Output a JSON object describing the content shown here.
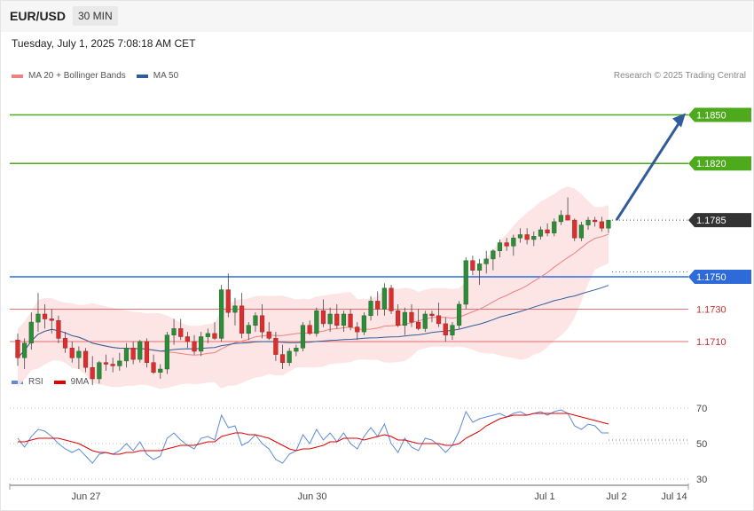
{
  "header": {
    "symbol": "EUR/USD",
    "timeframe": "30 MIN"
  },
  "timestamp": "Tuesday, July 1, 2025 7:08:18 AM CET",
  "credit": "Research © 2025 Trading Central",
  "legend_main": [
    {
      "label": "MA 20 + Bollinger Bands",
      "color": "#f08080"
    },
    {
      "label": "MA 50",
      "color": "#2f5c9a"
    }
  ],
  "legend_rsi": [
    {
      "label": "RSI",
      "color": "#5b8bd9"
    },
    {
      "label": "9MA",
      "color": "#e00000"
    }
  ],
  "chart_data": [
    {
      "type": "candlestick",
      "ylim": [
        1.167,
        1.1872
      ],
      "x_ticks": [
        "Jun 27",
        "Jun 30",
        "Jul 1",
        "Jul 2",
        "Jul 14"
      ],
      "levels": [
        {
          "value": 1.185,
          "label": "1.1850",
          "kind": "target",
          "color": "#4caa1c"
        },
        {
          "value": 1.182,
          "label": "1.1820",
          "kind": "resistance",
          "color": "#4caa1c"
        },
        {
          "value": 1.1785,
          "label": "1.1785",
          "kind": "last",
          "color": "#333333"
        },
        {
          "value": 1.175,
          "label": "1.1750",
          "kind": "pivot",
          "color": "#2f6bd8"
        },
        {
          "value": 1.173,
          "label": "1.1730",
          "kind": "support",
          "color": "#e05050"
        },
        {
          "value": 1.171,
          "label": "1.1710",
          "kind": "support",
          "color": "#e05050"
        }
      ],
      "projection": {
        "from": 1.1785,
        "to": 1.185
      },
      "ohlc": [
        [
          1.1711,
          1.1715,
          1.1695,
          1.17
        ],
        [
          1.17,
          1.1712,
          1.1693,
          1.1709
        ],
        [
          1.1709,
          1.1728,
          1.1705,
          1.1722
        ],
        [
          1.1722,
          1.174,
          1.1716,
          1.1727
        ],
        [
          1.1727,
          1.1733,
          1.1718,
          1.1724
        ],
        [
          1.1724,
          1.173,
          1.1715,
          1.1723
        ],
        [
          1.1723,
          1.1726,
          1.1709,
          1.1712
        ],
        [
          1.1712,
          1.1716,
          1.1703,
          1.1706
        ],
        [
          1.1706,
          1.171,
          1.1697,
          1.17
        ],
        [
          1.17,
          1.1707,
          1.1693,
          1.1704
        ],
        [
          1.1704,
          1.1706,
          1.1691,
          1.1694
        ],
        [
          1.1694,
          1.1701,
          1.1683,
          1.1687
        ],
        [
          1.1687,
          1.1698,
          1.1684,
          1.1697
        ],
        [
          1.1697,
          1.1702,
          1.1692,
          1.1696
        ],
        [
          1.1696,
          1.17,
          1.1691,
          1.1695
        ],
        [
          1.1695,
          1.1703,
          1.1692,
          1.1698
        ],
        [
          1.1698,
          1.1709,
          1.1694,
          1.1706
        ],
        [
          1.1706,
          1.171,
          1.1696,
          1.1699
        ],
        [
          1.1699,
          1.1711,
          1.1697,
          1.171
        ],
        [
          1.171,
          1.1712,
          1.1694,
          1.1697
        ],
        [
          1.1697,
          1.1702,
          1.169,
          1.1691
        ],
        [
          1.1691,
          1.1696,
          1.1687,
          1.1693
        ],
        [
          1.1693,
          1.1716,
          1.169,
          1.1714
        ],
        [
          1.1714,
          1.1724,
          1.1708,
          1.1718
        ],
        [
          1.1718,
          1.1724,
          1.1711,
          1.1713
        ],
        [
          1.1713,
          1.1716,
          1.1706,
          1.171
        ],
        [
          1.171,
          1.1714,
          1.1702,
          1.1704
        ],
        [
          1.1704,
          1.1716,
          1.1701,
          1.1713
        ],
        [
          1.1713,
          1.1718,
          1.1709,
          1.1715
        ],
        [
          1.1715,
          1.1722,
          1.1711,
          1.1712
        ],
        [
          1.1712,
          1.1745,
          1.171,
          1.1742
        ],
        [
          1.1742,
          1.1752,
          1.1725,
          1.1728
        ],
        [
          1.1728,
          1.1737,
          1.172,
          1.1732
        ],
        [
          1.1732,
          1.174,
          1.1712,
          1.1715
        ],
        [
          1.1715,
          1.1722,
          1.1711,
          1.172
        ],
        [
          1.172,
          1.1728,
          1.1716,
          1.1726
        ],
        [
          1.1726,
          1.1733,
          1.1712,
          1.1716
        ],
        [
          1.1716,
          1.1722,
          1.1711,
          1.1712
        ],
        [
          1.1712,
          1.1716,
          1.1698,
          1.1702
        ],
        [
          1.1702,
          1.1708,
          1.1693,
          1.1697
        ],
        [
          1.1697,
          1.1706,
          1.1695,
          1.1704
        ],
        [
          1.1704,
          1.1708,
          1.1701,
          1.1706
        ],
        [
          1.1706,
          1.1722,
          1.1704,
          1.172
        ],
        [
          1.172,
          1.1723,
          1.1714,
          1.1715
        ],
        [
          1.1715,
          1.1731,
          1.1713,
          1.1729
        ],
        [
          1.1729,
          1.1736,
          1.1719,
          1.1721
        ],
        [
          1.1721,
          1.1731,
          1.1716,
          1.1727
        ],
        [
          1.1727,
          1.1733,
          1.1718,
          1.172
        ],
        [
          1.172,
          1.1729,
          1.1716,
          1.1727
        ],
        [
          1.1727,
          1.173,
          1.1717,
          1.1719
        ],
        [
          1.1719,
          1.1722,
          1.1711,
          1.1716
        ],
        [
          1.1716,
          1.1728,
          1.1714,
          1.1726
        ],
        [
          1.1726,
          1.1738,
          1.1723,
          1.1735
        ],
        [
          1.1735,
          1.1741,
          1.1726,
          1.173
        ],
        [
          1.173,
          1.1746,
          1.1726,
          1.1743
        ],
        [
          1.1743,
          1.1745,
          1.1727,
          1.1729
        ],
        [
          1.1729,
          1.1733,
          1.1719,
          1.172
        ],
        [
          1.172,
          1.1731,
          1.1714,
          1.1728
        ],
        [
          1.1728,
          1.1733,
          1.1719,
          1.1722
        ],
        [
          1.1722,
          1.173,
          1.1717,
          1.1718
        ],
        [
          1.1718,
          1.1729,
          1.1716,
          1.1727
        ],
        [
          1.1727,
          1.1729,
          1.1722,
          1.1726
        ],
        [
          1.1726,
          1.1734,
          1.1719,
          1.1721
        ],
        [
          1.1721,
          1.1725,
          1.171,
          1.1714
        ],
        [
          1.1714,
          1.1722,
          1.1711,
          1.172
        ],
        [
          1.172,
          1.1735,
          1.1718,
          1.1733
        ],
        [
          1.1733,
          1.1762,
          1.173,
          1.176
        ],
        [
          1.176,
          1.1763,
          1.1751,
          1.1754
        ],
        [
          1.1754,
          1.1761,
          1.1745,
          1.1758
        ],
        [
          1.1758,
          1.1766,
          1.1752,
          1.1761
        ],
        [
          1.1761,
          1.1767,
          1.1754,
          1.1766
        ],
        [
          1.1766,
          1.1773,
          1.1762,
          1.1771
        ],
        [
          1.1771,
          1.1774,
          1.1766,
          1.1769
        ],
        [
          1.1769,
          1.1776,
          1.1763,
          1.1774
        ],
        [
          1.1774,
          1.178,
          1.1771,
          1.1776
        ],
        [
          1.1776,
          1.178,
          1.177,
          1.1773
        ],
        [
          1.1773,
          1.1778,
          1.1769,
          1.1775
        ],
        [
          1.1775,
          1.1781,
          1.1773,
          1.1779
        ],
        [
          1.1779,
          1.1783,
          1.1775,
          1.1777
        ],
        [
          1.1777,
          1.1786,
          1.1775,
          1.1784
        ],
        [
          1.1784,
          1.1791,
          1.1782,
          1.1788
        ],
        [
          1.1788,
          1.1799,
          1.1785,
          1.1785
        ],
        [
          1.1785,
          1.1786,
          1.1772,
          1.1774
        ],
        [
          1.1774,
          1.1784,
          1.1772,
          1.1782
        ],
        [
          1.1782,
          1.1787,
          1.1779,
          1.1785
        ],
        [
          1.1785,
          1.1787,
          1.1781,
          1.1784
        ],
        [
          1.1784,
          1.1787,
          1.1778,
          1.178
        ],
        [
          1.178,
          1.1785,
          1.1777,
          1.1785
        ]
      ]
    },
    {
      "type": "line",
      "title": "RSI",
      "ylim": [
        20,
        80
      ],
      "y_ticks": [
        70,
        50,
        30
      ],
      "series": [
        {
          "name": "RSI",
          "values": [
            53,
            48,
            54,
            58,
            57,
            54,
            50,
            47,
            45,
            47,
            43,
            39,
            44,
            45,
            44,
            46,
            50,
            46,
            51,
            44,
            41,
            43,
            53,
            56,
            52,
            49,
            47,
            53,
            54,
            52,
            66,
            59,
            60,
            49,
            51,
            55,
            50,
            47,
            41,
            39,
            44,
            46,
            55,
            50,
            58,
            52,
            56,
            51,
            56,
            50,
            47,
            54,
            59,
            54,
            61,
            50,
            45,
            53,
            48,
            46,
            53,
            52,
            49,
            45,
            49,
            57,
            68,
            62,
            64,
            65,
            66,
            67,
            65,
            67,
            68,
            66,
            67,
            68,
            66,
            68,
            69,
            67,
            60,
            58,
            61,
            60,
            56,
            56
          ]
        },
        {
          "name": "9MA",
          "values": [
            51,
            51,
            52,
            53,
            53,
            53,
            53,
            52,
            51,
            50,
            48,
            46,
            45,
            45,
            44,
            44,
            45,
            45,
            46,
            46,
            46,
            46,
            47,
            48,
            49,
            49,
            49,
            50,
            51,
            51,
            54,
            55,
            56,
            56,
            55,
            55,
            54,
            53,
            51,
            49,
            47,
            46,
            47,
            47,
            48,
            49,
            51,
            51,
            53,
            53,
            53,
            52,
            53,
            54,
            55,
            54,
            52,
            52,
            51,
            50,
            50,
            50,
            50,
            49,
            49,
            50,
            53,
            55,
            57,
            60,
            62,
            64,
            65,
            66,
            66,
            66,
            67,
            67,
            67,
            67,
            67,
            67,
            66,
            65,
            64,
            63,
            62,
            61
          ]
        }
      ]
    }
  ]
}
